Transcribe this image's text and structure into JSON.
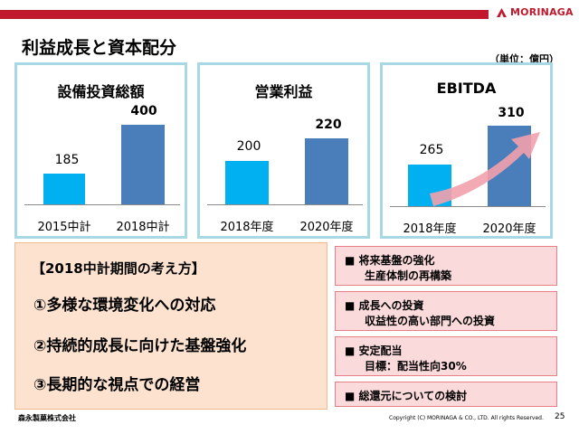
{
  "header": {
    "brand": "MORINAGA",
    "title": "利益成長と資本配分",
    "unit": "（単位：億円）"
  },
  "charts": [
    {
      "title": "設備投資総額",
      "categories": [
        "2015中計",
        "2018中計"
      ],
      "values": [
        185,
        400
      ],
      "value_labels": [
        "185",
        "400"
      ]
    },
    {
      "title": "営業利益",
      "categories": [
        "2018年度",
        "2020年度"
      ],
      "values": [
        200,
        220
      ],
      "value_labels": [
        "200",
        "220"
      ]
    },
    {
      "title": "EBITDA",
      "categories": [
        "2018年度",
        "2020年度"
      ],
      "values": [
        265,
        310
      ],
      "value_labels": [
        "265",
        "310"
      ]
    }
  ],
  "colors": {
    "bar_light": "#00b0f0",
    "bar_dark": "#4a7ebb",
    "accent_red": "#c0182c",
    "arrow": "#f2a1ac"
  },
  "policy": {
    "title": "【2018中計期間の考え方】",
    "items": [
      "①多様な環境変化への対応",
      "②持続的成長に向けた基盤強化",
      "③長期的な視点での経営"
    ]
  },
  "boxes": [
    {
      "line1": "■ 将来基盤の強化",
      "line2": "生産体制の再構築"
    },
    {
      "line1": "■ 成長への投資",
      "line2": "収益性の高い部門への投資"
    },
    {
      "line1": "■ 安定配当",
      "line2": "目標：配当性向30%"
    },
    {
      "line1": "■ 総還元についての検討",
      "line2": ""
    }
  ],
  "footer": {
    "company": "森永製菓株式会社",
    "copyright": "Copyright (C) MORINAGA & CO., LTD. All rights Reserved.",
    "page": "25"
  }
}
